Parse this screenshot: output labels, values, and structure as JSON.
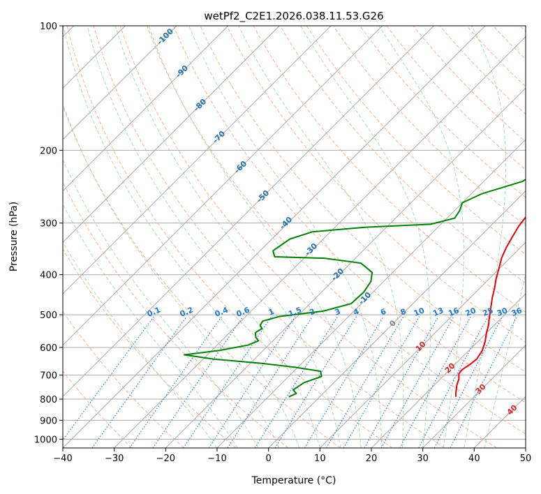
{
  "chart_data": {
    "type": "line",
    "title": "wetPf2_C2E1.2026.038.11.53.G26",
    "xlabel": "Temperature (°C)",
    "ylabel": "Pressure (hPa)",
    "xlim": [
      -40,
      50
    ],
    "ylim": [
      1050,
      100
    ],
    "x_ticks": [
      -40,
      -30,
      -20,
      -10,
      0,
      10,
      20,
      30,
      40,
      50
    ],
    "x_tick_labels": [
      "−40",
      "−30",
      "−20",
      "−10",
      "0",
      "10",
      "20",
      "30",
      "40",
      "50"
    ],
    "y_ticks": [
      100,
      200,
      300,
      400,
      500,
      600,
      700,
      800,
      900,
      1000
    ],
    "y_tick_labels": [
      "100",
      "200",
      "300",
      "400",
      "500",
      "600",
      "700",
      "800",
      "900",
      "1000"
    ],
    "series": [
      {
        "name": "temperature",
        "color": "#e8000b",
        "points": [
          [
            26.5,
            790
          ],
          [
            25.6,
            770
          ],
          [
            24.4,
            740
          ],
          [
            23.6,
            715
          ],
          [
            22.6,
            695
          ],
          [
            22.4,
            680
          ],
          [
            22.9,
            660
          ],
          [
            23.2,
            640
          ],
          [
            22.6,
            610
          ],
          [
            21.4,
            580
          ],
          [
            20.1,
            555
          ],
          [
            18.9,
            530
          ],
          [
            17.4,
            505
          ],
          [
            15.9,
            480
          ],
          [
            14.3,
            455
          ],
          [
            12.8,
            430
          ],
          [
            11.4,
            410
          ],
          [
            9.8,
            385
          ],
          [
            8.4,
            365
          ],
          [
            7.3,
            345
          ],
          [
            6.4,
            325
          ],
          [
            5.5,
            305
          ],
          [
            5.1,
            290
          ],
          [
            5.2,
            275
          ],
          [
            4.3,
            255
          ],
          [
            3.2,
            238
          ],
          [
            1.7,
            215
          ],
          [
            1.2,
            200
          ],
          [
            0.8,
            180
          ],
          [
            0.2,
            160
          ],
          [
            -0.4,
            145
          ],
          [
            -0.2,
            140
          ],
          [
            0.7,
            133
          ],
          [
            1.8,
            127
          ],
          [
            2.2,
            120
          ],
          [
            3.1,
            113
          ],
          [
            4.2,
            105
          ],
          [
            5.0,
            100
          ]
        ]
      },
      {
        "name": "dewpoint",
        "color": "#008000",
        "points": [
          [
            -6.0,
            790
          ],
          [
            -5.2,
            775
          ],
          [
            -6.5,
            760
          ],
          [
            -5.8,
            730
          ],
          [
            -3.6,
            705
          ],
          [
            -4.8,
            685
          ],
          [
            -10.5,
            670
          ],
          [
            -18.0,
            655
          ],
          [
            -28.0,
            640
          ],
          [
            -34.5,
            625
          ],
          [
            -28.5,
            610
          ],
          [
            -24.0,
            592
          ],
          [
            -22.8,
            578
          ],
          [
            -24.0,
            567
          ],
          [
            -25.0,
            552
          ],
          [
            -24.5,
            540
          ],
          [
            -25.5,
            530
          ],
          [
            -25.8,
            518
          ],
          [
            -23.5,
            505
          ],
          [
            -16.0,
            490
          ],
          [
            -12.0,
            470
          ],
          [
            -11.8,
            440
          ],
          [
            -12.5,
            415
          ],
          [
            -14.0,
            395
          ],
          [
            -18.0,
            375
          ],
          [
            -26.0,
            365
          ],
          [
            -36.0,
            362
          ],
          [
            -37.5,
            350
          ],
          [
            -36.5,
            328
          ],
          [
            -33.5,
            315
          ],
          [
            -24.0,
            307
          ],
          [
            -12.0,
            302
          ],
          [
            -8.5,
            292
          ],
          [
            -9.0,
            280
          ],
          [
            -10.0,
            268
          ],
          [
            -8.0,
            255
          ],
          [
            -2.5,
            238
          ],
          [
            -0.8,
            222
          ],
          [
            -1.2,
            210
          ],
          [
            -2.5,
            200
          ],
          [
            -4.5,
            193
          ],
          [
            -7.0,
            186
          ],
          [
            -8.2,
            175
          ],
          [
            -7.5,
            160
          ],
          [
            -6.8,
            147
          ],
          [
            -5.8,
            135
          ],
          [
            -3.8,
            120
          ],
          [
            -1.5,
            108
          ],
          [
            -0.5,
            100
          ]
        ]
      }
    ],
    "isotherm_labels": [
      "-100",
      "-90",
      "-80",
      "-70",
      "-60",
      "-50",
      "-40",
      "-30",
      "-20",
      "-10",
      "0",
      "10",
      "20",
      "30",
      "40"
    ],
    "mixing_ratio_labels": [
      "0.1",
      "0.2",
      "0.4",
      "0.6",
      "1",
      "1.5",
      "2",
      "3",
      "4",
      "6",
      "8",
      "10",
      "13",
      "16",
      "20",
      "25",
      "30",
      "36"
    ],
    "grid": true,
    "colors": {
      "isotherm": "#a8a8a8",
      "dry_adiabat": "#f4a582",
      "moist_adiabat": "#9fd39f",
      "mixing_ratio": "#1f78d1",
      "isotherm_label_cold": "#1f6fad",
      "isotherm_label_warm": "#d62728",
      "isotherm_label_zero": "#808080"
    }
  }
}
